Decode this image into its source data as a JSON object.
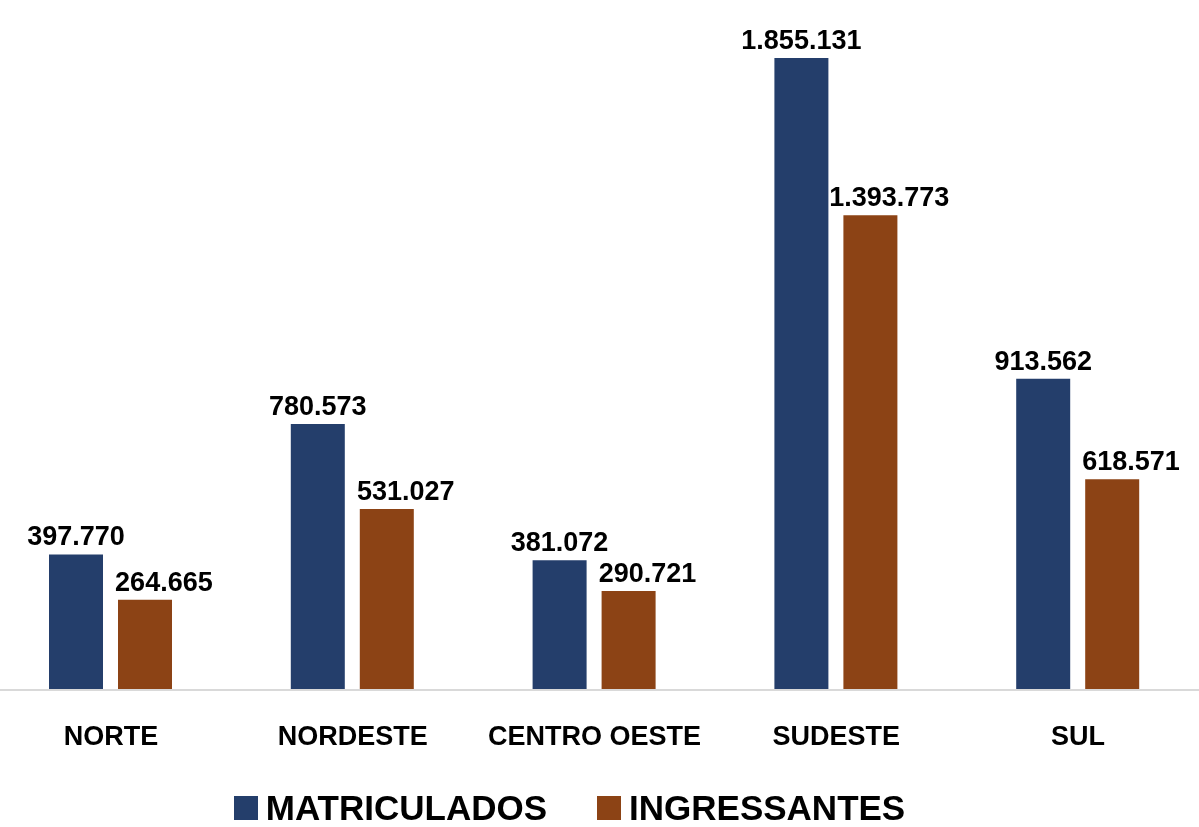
{
  "chart_data": {
    "type": "bar",
    "categories": [
      "NORTE",
      "NORDESTE",
      "CENTRO OESTE",
      "SUDESTE",
      "SUL"
    ],
    "series": [
      {
        "name": "MATRICULADOS",
        "color": "#243e6b",
        "values": [
          397770,
          780573,
          381072,
          1855131,
          913562
        ],
        "value_labels": [
          "397.770",
          "780.573",
          "381.072",
          "1.855.131",
          "913.562"
        ]
      },
      {
        "name": "INGRESSANTES",
        "color": "#8c4315",
        "values": [
          264665,
          531027,
          290721,
          1393773,
          618571
        ],
        "value_labels": [
          "264.665",
          "531.027",
          "290.721",
          "1.393.773",
          "618.571"
        ]
      }
    ],
    "legend": "bottom"
  }
}
